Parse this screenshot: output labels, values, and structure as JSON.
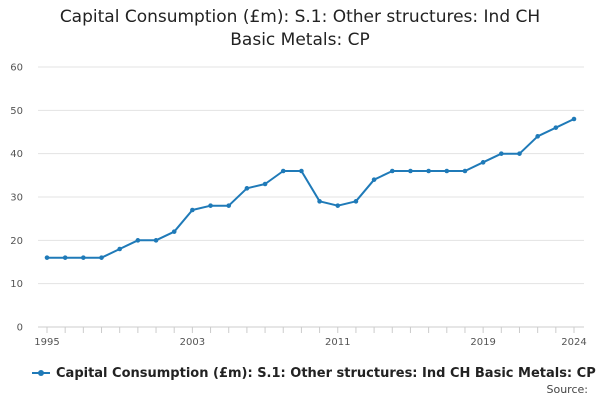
{
  "chart_data": {
    "type": "line",
    "title_line1": "Capital Consumption (£m): S.1: Other structures: Ind CH",
    "title_line2": "Basic Metals: CP",
    "x": [
      1995,
      1996,
      1997,
      1998,
      1999,
      2000,
      2001,
      2002,
      2003,
      2004,
      2005,
      2006,
      2007,
      2008,
      2009,
      2010,
      2011,
      2012,
      2013,
      2014,
      2015,
      2016,
      2017,
      2018,
      2019,
      2020,
      2021,
      2022,
      2023,
      2024
    ],
    "series": [
      {
        "name": "Capital Consumption (£m): S.1: Other structures: Ind CH Basic Metals: CP",
        "values": [
          16,
          16,
          16,
          16,
          18,
          20,
          20,
          22,
          27,
          28,
          28,
          32,
          33,
          36,
          36,
          29,
          28,
          29,
          34,
          36,
          36,
          36,
          36,
          36,
          38,
          40,
          40,
          44,
          46,
          48
        ],
        "color": "#1f7ab8"
      }
    ],
    "x_ticks": [
      "1995",
      "2003",
      "2011",
      "2019",
      "2024"
    ],
    "y_ticks": [
      "0",
      "10",
      "20",
      "30",
      "40",
      "50",
      "60"
    ],
    "ylim": [
      0,
      60
    ],
    "xlim": [
      1995,
      2024
    ],
    "grid": true,
    "legend_position": "bottom"
  },
  "source_label": "Source:"
}
